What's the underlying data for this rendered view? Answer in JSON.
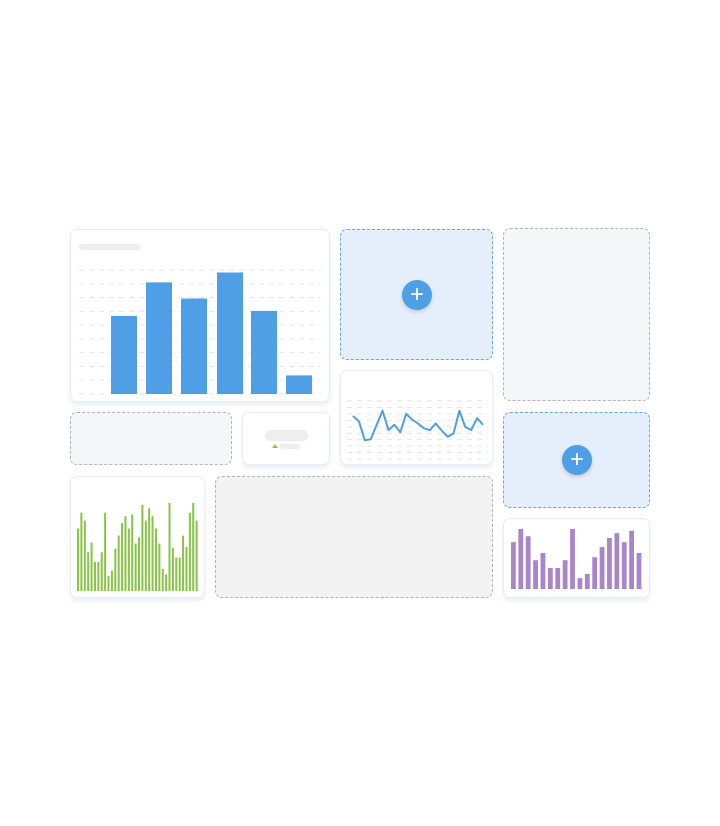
{
  "colors": {
    "accent": "#4f9fe6",
    "green": "#8bc34a",
    "purple": "#a986c9",
    "grid": "#e6e6e6"
  },
  "icons": {
    "add": "plus-icon",
    "trend": "arrow-up-icon"
  },
  "add_label": "+",
  "chart_data": [
    {
      "type": "bar",
      "name_hint": "",
      "values": [
        0.63,
        0.9,
        0.77,
        0.98,
        0.67,
        0.15
      ],
      "ylim": [
        0,
        1
      ],
      "grid": true
    },
    {
      "type": "line",
      "values": [
        0.75,
        0.63,
        0.2,
        0.22,
        0.55,
        0.87,
        0.43,
        0.55,
        0.38,
        0.8,
        0.67,
        0.58,
        0.47,
        0.43,
        0.58,
        0.42,
        0.28,
        0.35,
        0.87,
        0.5,
        0.43,
        0.7,
        0.55
      ],
      "ylim": [
        0,
        1
      ],
      "grid": true
    },
    {
      "type": "bar",
      "values": [
        0.71,
        0.89,
        0.8,
        0.44,
        0.55,
        0.33,
        0.33,
        0.44,
        0.89,
        0.17,
        0.23,
        0.48,
        0.63,
        0.77,
        0.85,
        0.71,
        0.87,
        0.54,
        0.61,
        0.98,
        0.8,
        0.94,
        0.85,
        0.71,
        0.54,
        0.25,
        0.19,
        1.0,
        0.49,
        0.38,
        0.38,
        0.63,
        0.5,
        0.89,
        1.0,
        0.8
      ],
      "ylim": [
        0,
        1
      ]
    },
    {
      "type": "bar",
      "values": [
        0.78,
        1.0,
        0.88,
        0.48,
        0.6,
        0.35,
        0.35,
        0.48,
        1.0,
        0.18,
        0.25,
        0.53,
        0.7,
        0.85,
        0.93,
        0.78,
        0.97,
        0.6
      ],
      "ylim": [
        0,
        1
      ]
    }
  ]
}
